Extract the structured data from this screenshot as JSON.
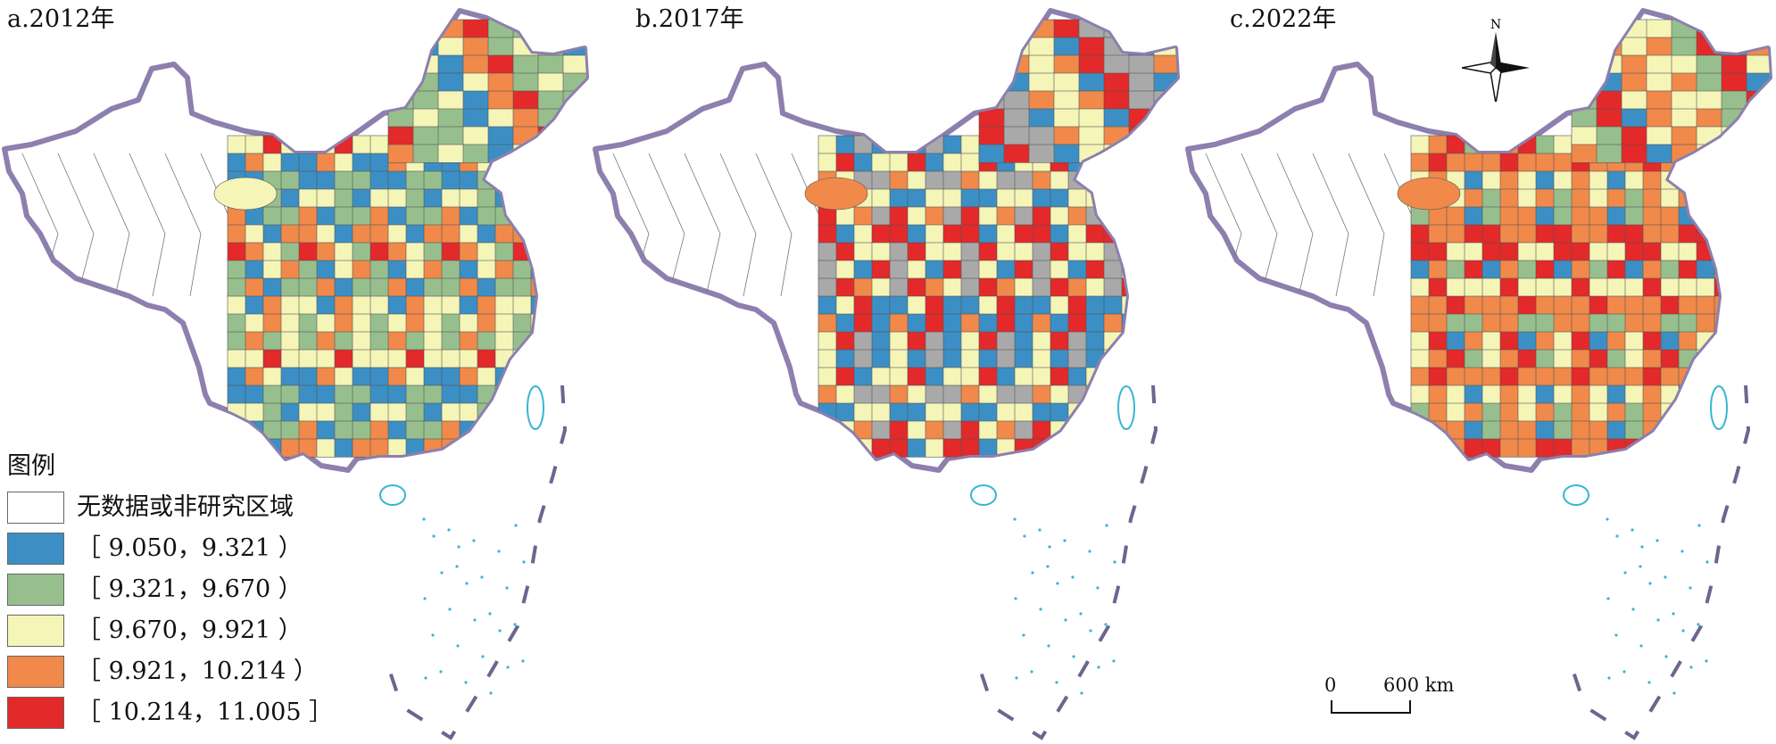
{
  "panels": [
    {
      "id": "a",
      "title": "a.2012年",
      "palette": [
        "#f5f5b8",
        "#97bf8e",
        "#3b8fc4",
        "#f5f5b8",
        "#f0894a",
        "#97bf8e",
        "#e3292a",
        "#3b8fc4",
        "#97bf8e",
        "#f5f5b8",
        "#97bf8e",
        "#f0894a"
      ]
    },
    {
      "id": "b",
      "title": "b.2017年",
      "palette": [
        "#f5f5b8",
        "#a9a9a9",
        "#3b8fc4",
        "#f0894a",
        "#e3292a",
        "#f5f5b8",
        "#a9a9a9",
        "#f0894a",
        "#3b8fc4",
        "#e3292a",
        "#f5f5b8",
        "#a9a9a9"
      ]
    },
    {
      "id": "c",
      "title": "c.2022年",
      "palette": [
        "#f5f5b8",
        "#f0894a",
        "#97bf8e",
        "#f5f5b8",
        "#e3292a",
        "#f0894a",
        "#f5f5b8",
        "#97bf8e",
        "#f0894a",
        "#e3292a",
        "#f5f5b8",
        "#3b8fc4"
      ]
    }
  ],
  "legend": {
    "title": "图例",
    "items": [
      {
        "label": "无数据或非研究区域",
        "color": "#ffffff"
      },
      {
        "label": "［ 9.050，9.321 ）",
        "color": "#3b8fc4"
      },
      {
        "label": "［ 9.321，9.670 ）",
        "color": "#97bf8e"
      },
      {
        "label": "［ 9.670，9.921 ）",
        "color": "#f5f5b8"
      },
      {
        "label": "［ 9.921，10.214 ）",
        "color": "#f0894a"
      },
      {
        "label": "［ 10.214，11.005 ］",
        "color": "#e3292a"
      }
    ]
  },
  "north_arrow": {
    "label": "N"
  },
  "scale_bar": {
    "start": "0",
    "end": "600 km"
  },
  "colors": {
    "border_purple": "#8d7fae",
    "island_cyan": "#38b6d4",
    "no_data_grey": "#a9a9a9"
  }
}
